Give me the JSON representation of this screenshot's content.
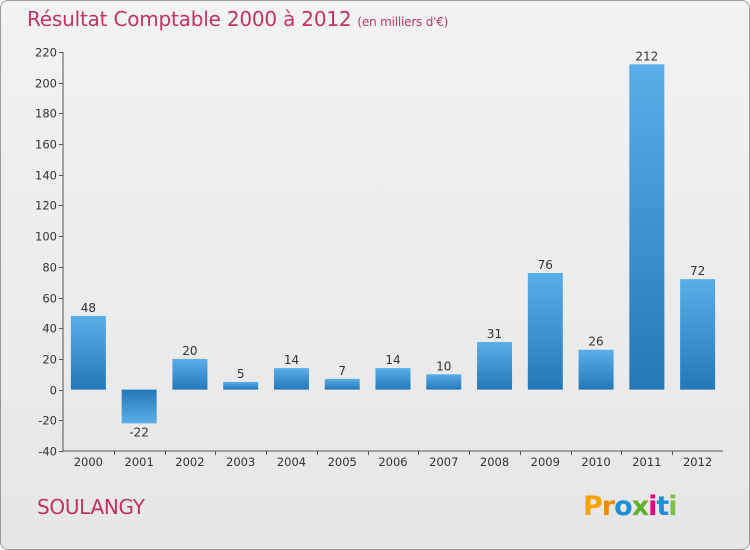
{
  "chart_data": {
    "type": "bar",
    "title": "Résultat Comptable 2000 à 2012",
    "subtitle": "(en milliers d'€)",
    "categories": [
      "2000",
      "2001",
      "2002",
      "2003",
      "2004",
      "2005",
      "2006",
      "2007",
      "2008",
      "2009",
      "2010",
      "2011",
      "2012"
    ],
    "values": [
      48,
      -22,
      20,
      5,
      14,
      7,
      14,
      10,
      31,
      76,
      26,
      212,
      72
    ],
    "ylim": [
      -40,
      220
    ],
    "yticks": [
      -40,
      -20,
      0,
      20,
      40,
      60,
      80,
      100,
      120,
      140,
      160,
      180,
      200,
      220
    ],
    "grid": false,
    "colors": {
      "bar_light": "#5aaee8",
      "bar_dark": "#2378b8",
      "title": "#c0345e"
    }
  },
  "footer": {
    "city": "SOULANGY"
  },
  "logo": {
    "letters": [
      "P",
      "r",
      "o",
      "x",
      "i",
      "t",
      "i"
    ]
  }
}
